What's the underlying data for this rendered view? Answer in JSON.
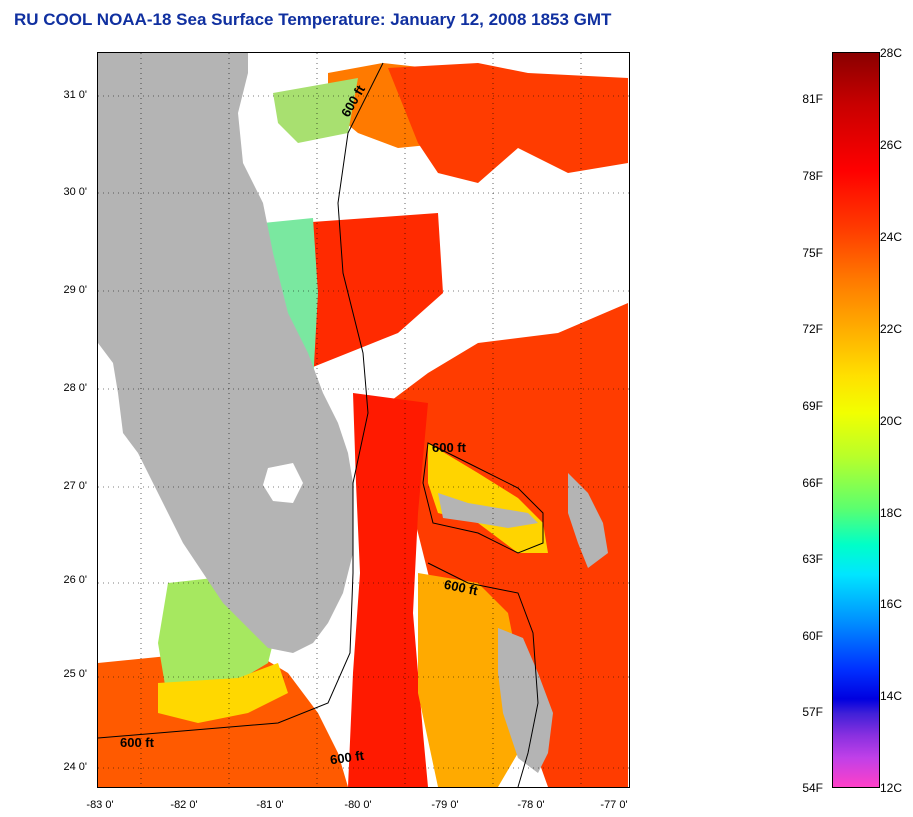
{
  "title": "RU COOL  NOAA-18  Sea Surface Temperature:  January 12, 2008 1853 GMT",
  "map": {
    "lat_ticks": [
      "31 0'",
      "30 0'",
      "29 0'",
      "28 0'",
      "27 0'",
      "26 0'",
      "25 0'",
      "24 0'"
    ],
    "lon_ticks": [
      "-83 0'",
      "-82 0'",
      "-81 0'",
      "-80 0'",
      "-79 0'",
      "-78 0'",
      "-77 0'"
    ],
    "isobath_labels": [
      "600 ft",
      "600 ft",
      "600 ft",
      "600 ft",
      "600 ft"
    ],
    "colors": {
      "land": "#b4b4b4",
      "ocean_no_data": "#ffffff",
      "isobath": "#000000"
    }
  },
  "colorbar": {
    "fahrenheit": [
      "81F",
      "78F",
      "75F",
      "72F",
      "69F",
      "66F",
      "63F",
      "60F",
      "57F",
      "54F"
    ],
    "celsius": [
      "28C",
      "26C",
      "24C",
      "22C",
      "20C",
      "18C",
      "16C",
      "14C",
      "12C"
    ]
  }
}
